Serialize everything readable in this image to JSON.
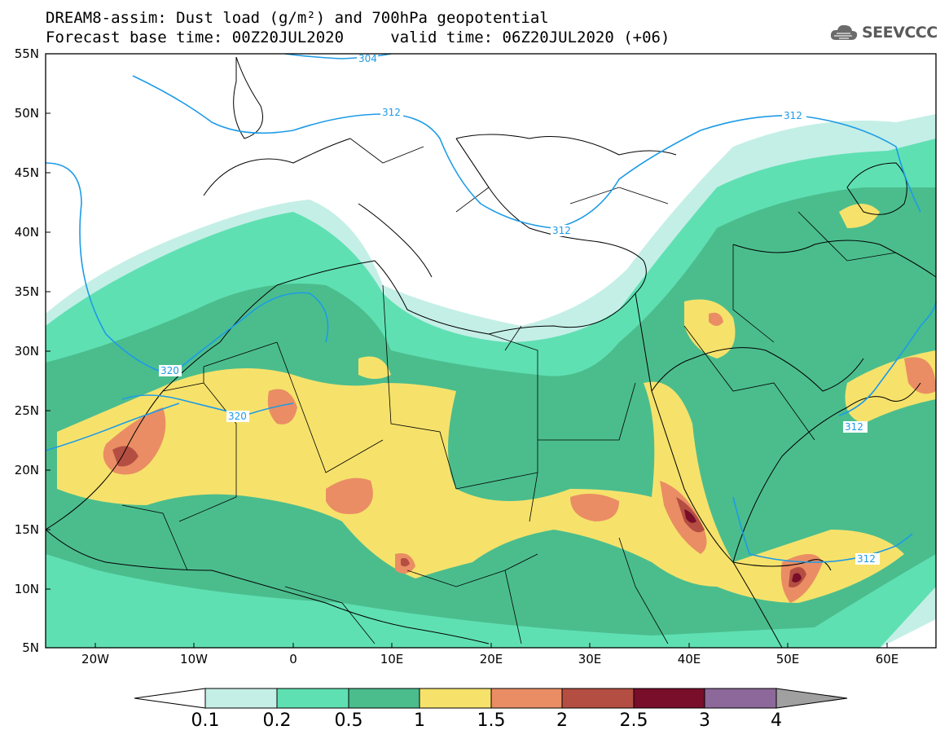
{
  "header": {
    "title_line1": "DREAM8-assim: Dust load (g/m²) and 700hPa geopotential",
    "title_line2": "Forecast base time: 00Z20JUL2020     valid time: 06Z20JUL2020 (+06)",
    "logo_text": "SEEVCCC",
    "logo_icon": "cloud-icon"
  },
  "map": {
    "lat_labels": [
      "55N",
      "50N",
      "45N",
      "40N",
      "35N",
      "30N",
      "25N",
      "20N",
      "15N",
      "10N",
      "5N"
    ],
    "lon_labels": [
      "20W",
      "10W",
      "0",
      "10E",
      "20E",
      "30E",
      "40E",
      "50E",
      "60E"
    ],
    "contour_labels": [
      "304",
      "312",
      "312",
      "312",
      "312",
      "320",
      "320",
      "312"
    ],
    "contour_color": "#1e9be6"
  },
  "colorbar": {
    "labels": [
      "0.1",
      "0.2",
      "0.5",
      "1",
      "1.5",
      "2",
      "2.5",
      "3",
      "4"
    ],
    "colors": [
      "#ffffff",
      "#c4efe6",
      "#5fe0b3",
      "#4bbd8d",
      "#f6e26b",
      "#ea8d64",
      "#b44e42",
      "#780e2a",
      "#8d689a",
      "#a0a0a0"
    ]
  }
}
